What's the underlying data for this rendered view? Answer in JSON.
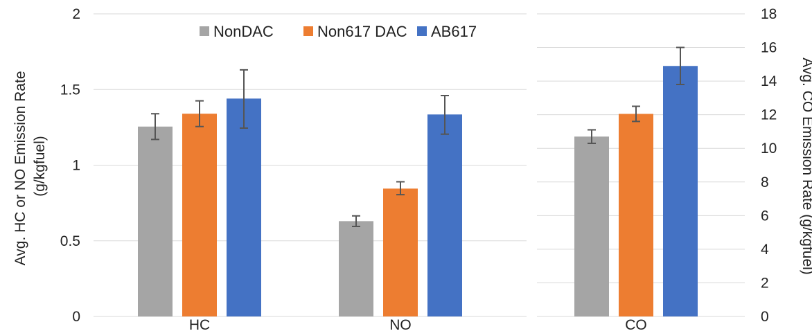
{
  "chart_data": {
    "type": "bar",
    "ylabel_left": "Avg. HC or NO Emission Rate\n(g/kgfuel)",
    "ylabel_right": "Avg. CO Emission Rate (g/kgfuel)",
    "legend_position": "top",
    "grid": true,
    "colors": {
      "NonDAC": "#a5a5a5",
      "Non617 DAC": "#ed7d31",
      "AB617": "#4472c4"
    },
    "left_panel": {
      "ylim": [
        0,
        2
      ],
      "yticks": [
        "0",
        "0.5",
        "1",
        "1.5",
        "2"
      ],
      "categories": [
        "HC",
        "NO"
      ],
      "series": [
        {
          "name": "NonDAC",
          "values": [
            1.255,
            0.63
          ],
          "err_low": [
            1.17,
            0.595
          ],
          "err_high": [
            1.34,
            0.665
          ]
        },
        {
          "name": "Non617 DAC",
          "values": [
            1.34,
            0.845
          ],
          "err_low": [
            1.255,
            0.805
          ],
          "err_high": [
            1.425,
            0.89
          ]
        },
        {
          "name": "AB617",
          "values": [
            1.44,
            1.335
          ],
          "err_low": [
            1.245,
            1.205
          ],
          "err_high": [
            1.63,
            1.46
          ]
        }
      ]
    },
    "right_panel": {
      "ylim": [
        0,
        18
      ],
      "yticks": [
        "0",
        "2",
        "4",
        "6",
        "8",
        "10",
        "12",
        "14",
        "16",
        "18"
      ],
      "categories": [
        "CO"
      ],
      "series": [
        {
          "name": "NonDAC",
          "values": [
            10.7
          ],
          "err_low": [
            10.3
          ],
          "err_high": [
            11.1
          ]
        },
        {
          "name": "Non617 DAC",
          "values": [
            12.05
          ],
          "err_low": [
            11.6
          ],
          "err_high": [
            12.5
          ]
        },
        {
          "name": "AB617",
          "values": [
            14.9
          ],
          "err_low": [
            13.8
          ],
          "err_high": [
            16.0
          ]
        }
      ]
    }
  }
}
